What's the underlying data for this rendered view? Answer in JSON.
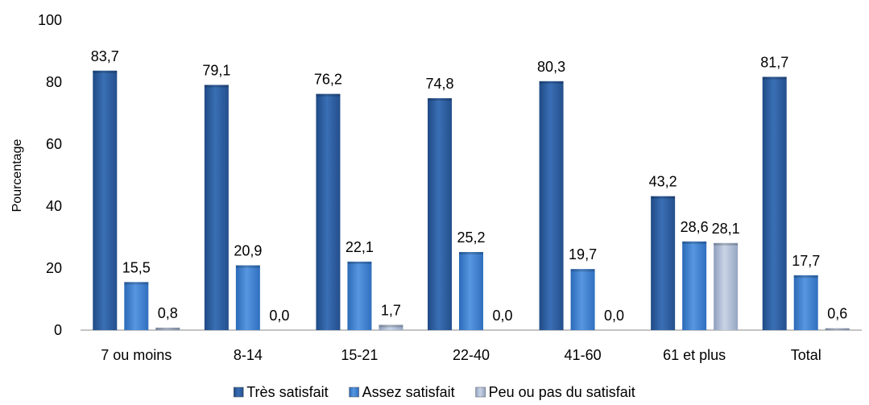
{
  "chart_data": {
    "type": "bar",
    "title": "",
    "xlabel": "",
    "ylabel": "Pourcentage",
    "ylim": [
      0,
      100
    ],
    "yticks": [
      0,
      20,
      40,
      60,
      80,
      100
    ],
    "grid": false,
    "legend_position": "bottom",
    "categories": [
      "7 ou moins",
      "8-14",
      "15-21",
      "22-40",
      "41-60",
      "61 et plus",
      "Total"
    ],
    "series": [
      {
        "name": "Très satisfait",
        "color": "#2F5E9E",
        "values": [
          83.7,
          79.1,
          76.2,
          74.8,
          80.3,
          43.2,
          81.7
        ],
        "labels": [
          "83,7",
          "79,1",
          "76,2",
          "74,8",
          "80,3",
          "43,2",
          "81,7"
        ]
      },
      {
        "name": "Assez satisfait",
        "color": "#3C7FCF",
        "values": [
          15.5,
          20.9,
          22.1,
          25.2,
          19.7,
          28.6,
          17.7
        ],
        "labels": [
          "15,5",
          "20,9",
          "22,1",
          "25,2",
          "19,7",
          "28,6",
          "17,7"
        ]
      },
      {
        "name": "Peu ou pas du satisfait",
        "color": "#A7B6CF",
        "values": [
          0.8,
          0.0,
          1.7,
          0.0,
          0.0,
          28.1,
          0.6
        ],
        "labels": [
          "0,8",
          "0,0",
          "1,7",
          "0,0",
          "0,0",
          "28,1",
          "0,6"
        ]
      }
    ]
  }
}
